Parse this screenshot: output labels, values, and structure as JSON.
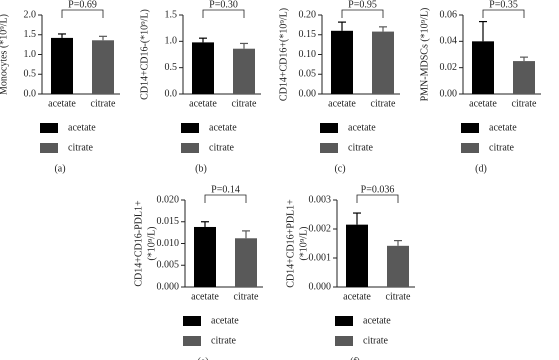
{
  "chart_data": [
    {
      "type": "bar",
      "panel": "(a)",
      "ylabel": [
        "Monocytes (*10⁹/L)"
      ],
      "annotation": "P=0.69",
      "categories": [
        "acetate",
        "citrate"
      ],
      "values": [
        1.42,
        1.36
      ],
      "errors": [
        0.1,
        0.1
      ],
      "colors": [
        "#000000",
        "#595959"
      ],
      "ylim": [
        0,
        2
      ],
      "yticks": [
        {
          "value": 0,
          "label": "0.0"
        },
        {
          "value": 0.5,
          "label": "0.5"
        },
        {
          "value": 1,
          "label": "1.0"
        },
        {
          "value": 1.5,
          "label": "1.5"
        },
        {
          "value": 2,
          "label": "2.0"
        }
      ]
    },
    {
      "type": "bar",
      "panel": "(b)",
      "ylabel": [
        "CD14+CD16-(*10⁹/L)"
      ],
      "annotation": "P=0.30",
      "categories": [
        "acetate",
        "citrate"
      ],
      "values": [
        0.98,
        0.86
      ],
      "errors": [
        0.08,
        0.1
      ],
      "colors": [
        "#000000",
        "#595959"
      ],
      "ylim": [
        0,
        1.5
      ],
      "yticks": [
        {
          "value": 0,
          "label": "0.0"
        },
        {
          "value": 0.5,
          "label": "0.5"
        },
        {
          "value": 1,
          "label": "1.0"
        },
        {
          "value": 1.5,
          "label": "1.5"
        }
      ]
    },
    {
      "type": "bar",
      "panel": "(c)",
      "ylabel": [
        "CD14+CD16+(*10⁹/L)"
      ],
      "annotation": "P=0.95",
      "categories": [
        "acetate",
        "citrate"
      ],
      "values": [
        0.16,
        0.158
      ],
      "errors": [
        0.022,
        0.012
      ],
      "colors": [
        "#000000",
        "#595959"
      ],
      "ylim": [
        0,
        0.2
      ],
      "yticks": [
        {
          "value": 0,
          "label": "0.00"
        },
        {
          "value": 0.05,
          "label": "0.05"
        },
        {
          "value": 0.1,
          "label": "0.10"
        },
        {
          "value": 0.15,
          "label": "0.15"
        },
        {
          "value": 0.2,
          "label": "0.20"
        }
      ]
    },
    {
      "type": "bar",
      "panel": "(d)",
      "ylabel": [
        "PMN-MDSCs (*10⁹/L)"
      ],
      "annotation": "P=0.35",
      "categories": [
        "acetate",
        "citrate"
      ],
      "values": [
        0.04,
        0.025
      ],
      "errors": [
        0.015,
        0.003
      ],
      "colors": [
        "#000000",
        "#595959"
      ],
      "ylim": [
        0,
        0.06
      ],
      "yticks": [
        {
          "value": 0,
          "label": "0.00"
        },
        {
          "value": 0.02,
          "label": "0.02"
        },
        {
          "value": 0.04,
          "label": "0.04"
        },
        {
          "value": 0.06,
          "label": "0.06"
        }
      ]
    },
    {
      "type": "bar",
      "panel": "(e)",
      "ylabel": [
        "CD14+CD16-PDL1+",
        "(*10⁹/L)"
      ],
      "annotation": "P=0.14",
      "categories": [
        "acetate",
        "citrate"
      ],
      "values": [
        0.0138,
        0.0112
      ],
      "errors": [
        0.0012,
        0.0017
      ],
      "colors": [
        "#000000",
        "#595959"
      ],
      "ylim": [
        0,
        0.02
      ],
      "yticks": [
        {
          "value": 0,
          "label": "0.000"
        },
        {
          "value": 0.005,
          "label": "0.005"
        },
        {
          "value": 0.01,
          "label": "0.010"
        },
        {
          "value": 0.015,
          "label": "0.015"
        },
        {
          "value": 0.02,
          "label": "0.020"
        }
      ]
    },
    {
      "type": "bar",
      "panel": "(f)",
      "ylabel": [
        "CD14+CD16+PDL1+",
        "(*10⁹/L)"
      ],
      "annotation": "P=0.036",
      "categories": [
        "acetate",
        "citrate"
      ],
      "values": [
        0.00215,
        0.00142
      ],
      "errors": [
        0.0004,
        0.00018
      ],
      "colors": [
        "#000000",
        "#595959"
      ],
      "ylim": [
        0,
        0.003
      ],
      "yticks": [
        {
          "value": 0,
          "label": "0.000"
        },
        {
          "value": 0.001,
          "label": "0.001"
        },
        {
          "value": 0.002,
          "label": "0.002"
        },
        {
          "value": 0.003,
          "label": "0.003"
        }
      ]
    }
  ]
}
